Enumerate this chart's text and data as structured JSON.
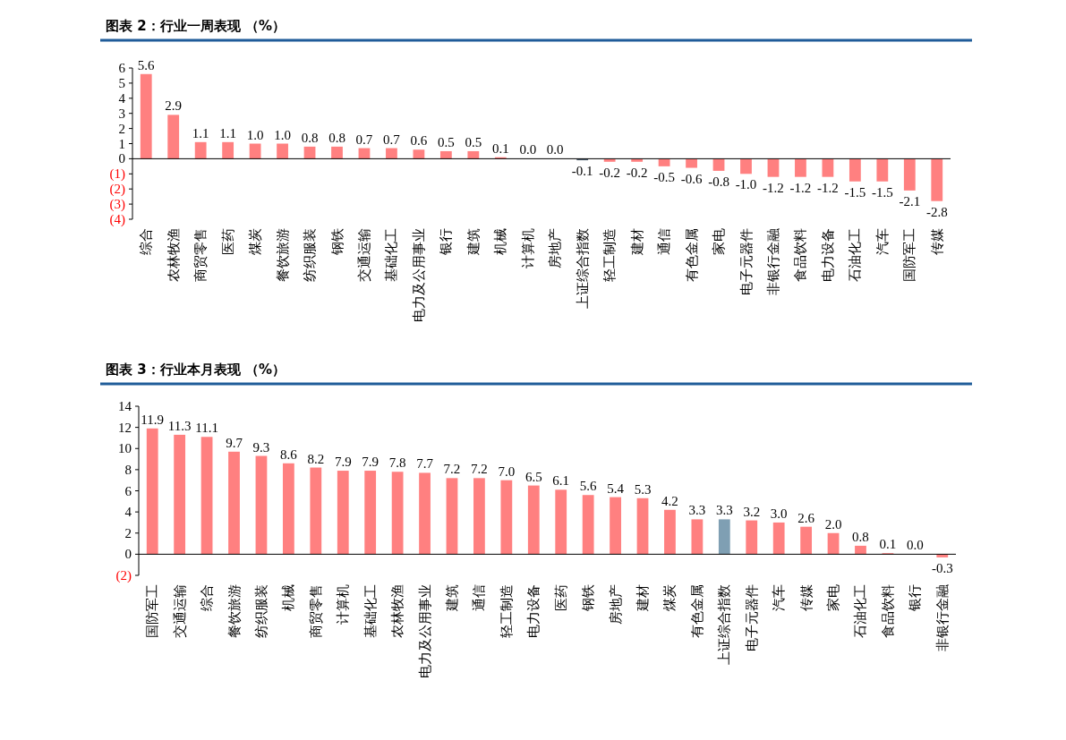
{
  "chart_data": [
    {
      "type": "bar",
      "title": "图表 2：行业一周表现 （%）",
      "categories": [
        "综合",
        "农林牧渔",
        "商贸零售",
        "医药",
        "煤炭",
        "餐饮旅游",
        "纺织服装",
        "钢铁",
        "交通运输",
        "基础化工",
        "电力及公用事业",
        "银行",
        "建筑",
        "机械",
        "计算机",
        "房地产",
        "上证综合指数",
        "轻工制造",
        "建材",
        "通信",
        "有色金属",
        "家电",
        "电子元器件",
        "非银行金融",
        "食品饮料",
        "电力设备",
        "石油化工",
        "汽车",
        "国防军工",
        "传媒"
      ],
      "values": [
        5.6,
        2.9,
        1.1,
        1.1,
        1.0,
        1.0,
        0.8,
        0.8,
        0.7,
        0.7,
        0.6,
        0.5,
        0.5,
        0.1,
        0.0,
        0.0,
        -0.1,
        -0.2,
        -0.2,
        -0.5,
        -0.6,
        -0.8,
        -1.0,
        -1.2,
        -1.2,
        -1.2,
        -1.5,
        -1.5,
        -2.1,
        -2.8
      ],
      "value_labels": [
        "5.6",
        "2.9",
        "1.1",
        "1.1",
        "1.0",
        "1.0",
        "0.8",
        "0.8",
        "0.7",
        "0.7",
        "0.6",
        "0.5",
        "0.5",
        "0.1",
        "0.0",
        "0.0",
        "-0.1",
        "-0.2",
        "-0.2",
        "-0.5",
        "-0.6",
        "-0.8",
        "-1.0",
        "-1.2",
        "-1.2",
        "-1.2",
        "-1.5",
        "-1.5",
        "-2.1",
        "-2.8"
      ],
      "colors": [
        "#ff8080",
        "#ff8080",
        "#ff8080",
        "#ff8080",
        "#ff8080",
        "#ff8080",
        "#ff8080",
        "#ff8080",
        "#ff8080",
        "#ff8080",
        "#ff8080",
        "#ff8080",
        "#ff8080",
        "#ff8080",
        "#ff8080",
        "#ff8080",
        "#4a5a6a",
        "#ff8080",
        "#ff8080",
        "#ff8080",
        "#ff8080",
        "#ff8080",
        "#ff8080",
        "#ff8080",
        "#ff8080",
        "#ff8080",
        "#ff8080",
        "#ff8080",
        "#ff8080",
        "#ff8080"
      ],
      "ylim": [
        -4,
        6
      ],
      "yticks": [
        {
          "value": -4,
          "label": "(4)"
        },
        {
          "value": -3,
          "label": "(3)"
        },
        {
          "value": -2,
          "label": "(2)"
        },
        {
          "value": -1,
          "label": "(1)"
        },
        0,
        1,
        2,
        3,
        4,
        5,
        6
      ]
    },
    {
      "type": "bar",
      "title": "图表 3：行业本月表现 （%）",
      "categories": [
        "国防军工",
        "交通运输",
        "综合",
        "餐饮旅游",
        "纺织服装",
        "机械",
        "商贸零售",
        "计算机",
        "基础化工",
        "农林牧渔",
        "电力及公用事业",
        "建筑",
        "通信",
        "轻工制造",
        "电力设备",
        "医药",
        "钢铁",
        "房地产",
        "建材",
        "煤炭",
        "有色金属",
        "上证综合指数",
        "电子元器件",
        "汽车",
        "传媒",
        "家电",
        "石油化工",
        "食品饮料",
        "银行",
        "非银行金融"
      ],
      "values": [
        11.9,
        11.3,
        11.1,
        9.7,
        9.3,
        8.6,
        8.2,
        7.9,
        7.9,
        7.8,
        7.7,
        7.2,
        7.2,
        7.0,
        6.5,
        6.1,
        5.6,
        5.4,
        5.3,
        4.2,
        3.3,
        3.3,
        3.2,
        3.0,
        2.6,
        2.0,
        0.8,
        0.1,
        0.0,
        -0.3
      ],
      "value_labels": [
        "11.9",
        "11.3",
        "11.1",
        "9.7",
        "9.3",
        "8.6",
        "8.2",
        "7.9",
        "7.9",
        "7.8",
        "7.7",
        "7.2",
        "7.2",
        "7.0",
        "6.5",
        "6.1",
        "5.6",
        "5.4",
        "5.3",
        "4.2",
        "3.3",
        "3.3",
        "3.2",
        "3.0",
        "2.6",
        "2.0",
        "0.8",
        "0.1",
        "0.0",
        "-0.3"
      ],
      "colors": [
        "#ff8080",
        "#ff8080",
        "#ff8080",
        "#ff8080",
        "#ff8080",
        "#ff8080",
        "#ff8080",
        "#ff8080",
        "#ff8080",
        "#ff8080",
        "#ff8080",
        "#ff8080",
        "#ff8080",
        "#ff8080",
        "#ff8080",
        "#ff8080",
        "#ff8080",
        "#ff8080",
        "#ff8080",
        "#ff8080",
        "#ff8080",
        "#7f9fb3",
        "#ff8080",
        "#ff8080",
        "#ff8080",
        "#ff8080",
        "#ff8080",
        "#ff8080",
        "#ff8080",
        "#ff8080"
      ],
      "ylim": [
        -2,
        14
      ],
      "yticks": [
        {
          "value": -2,
          "label": "(2)"
        },
        0,
        2,
        4,
        6,
        8,
        10,
        12,
        14
      ]
    }
  ]
}
